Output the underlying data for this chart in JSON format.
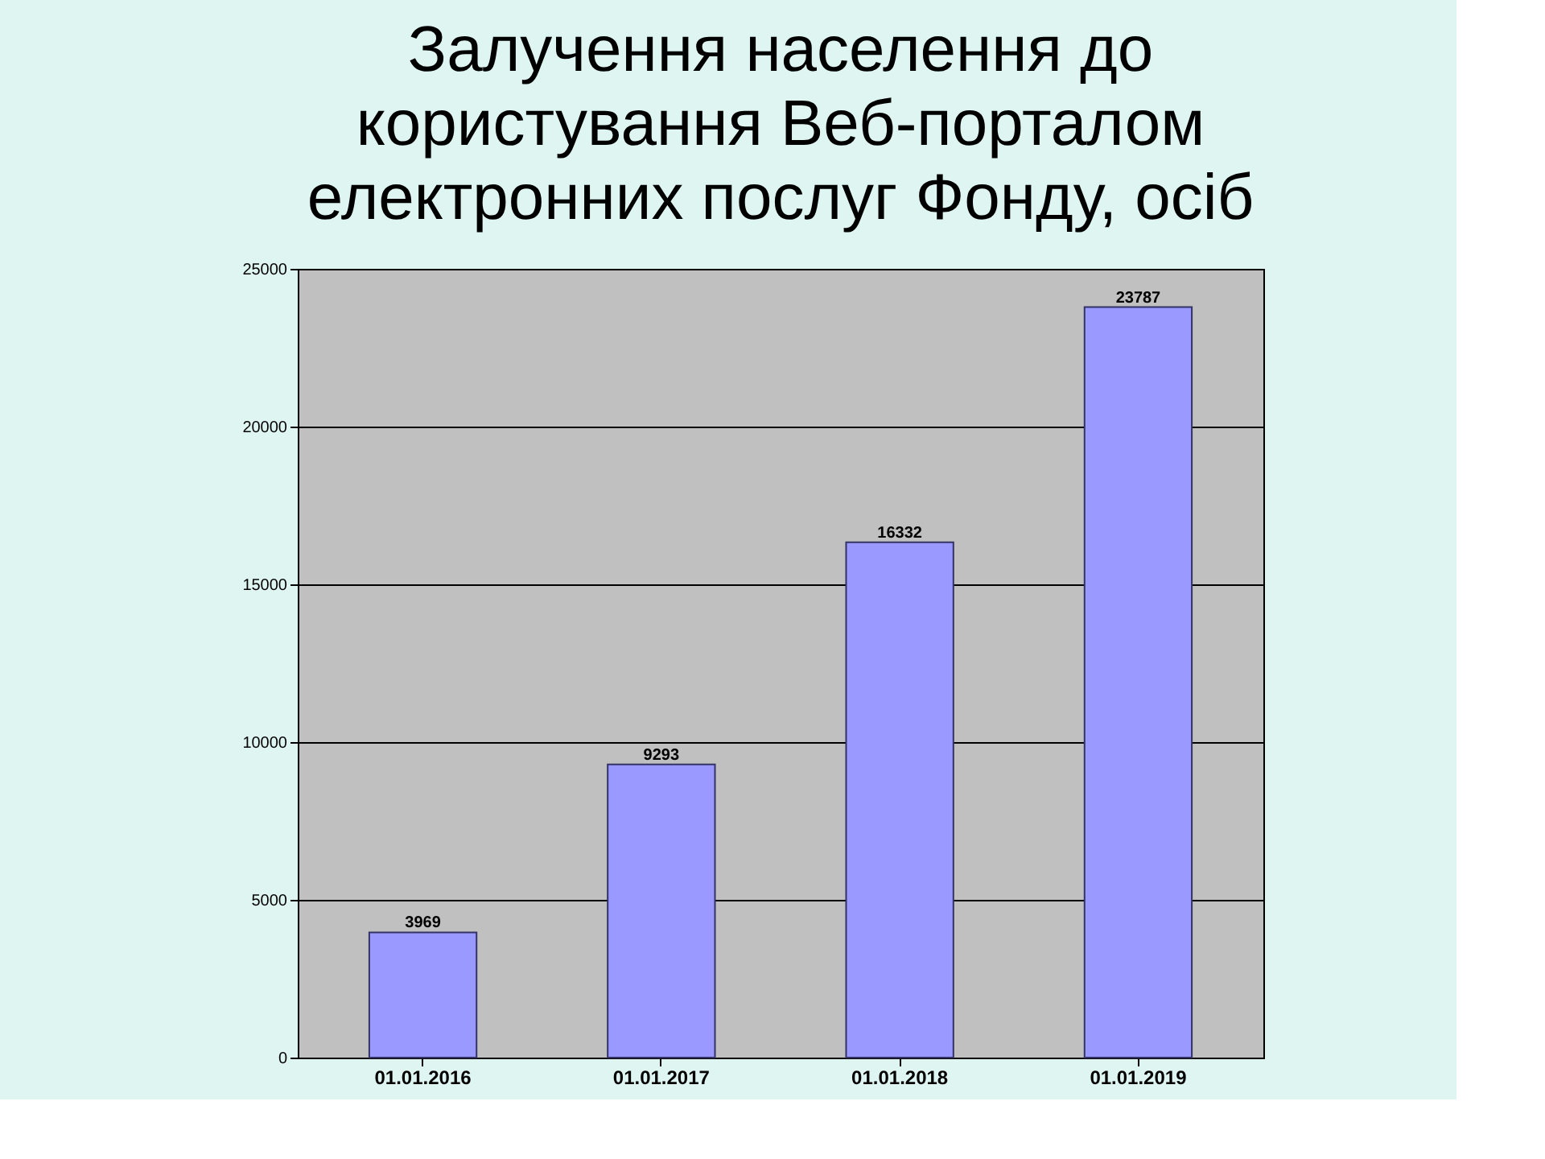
{
  "chart_data": {
    "type": "bar",
    "title": "Залучення населення до\nкористування Веб-порталом\nелектронних послуг Фонду, осіб",
    "categories": [
      "01.01.2016",
      "01.01.2017",
      "01.01.2018",
      "01.01.2019"
    ],
    "values": [
      3969,
      9293,
      16332,
      23787
    ],
    "color": "#9999ff",
    "ylim": [
      0,
      25000
    ],
    "yticks": [
      0,
      5000,
      10000,
      15000,
      20000,
      25000
    ],
    "grid": "y",
    "data_labels": true
  }
}
